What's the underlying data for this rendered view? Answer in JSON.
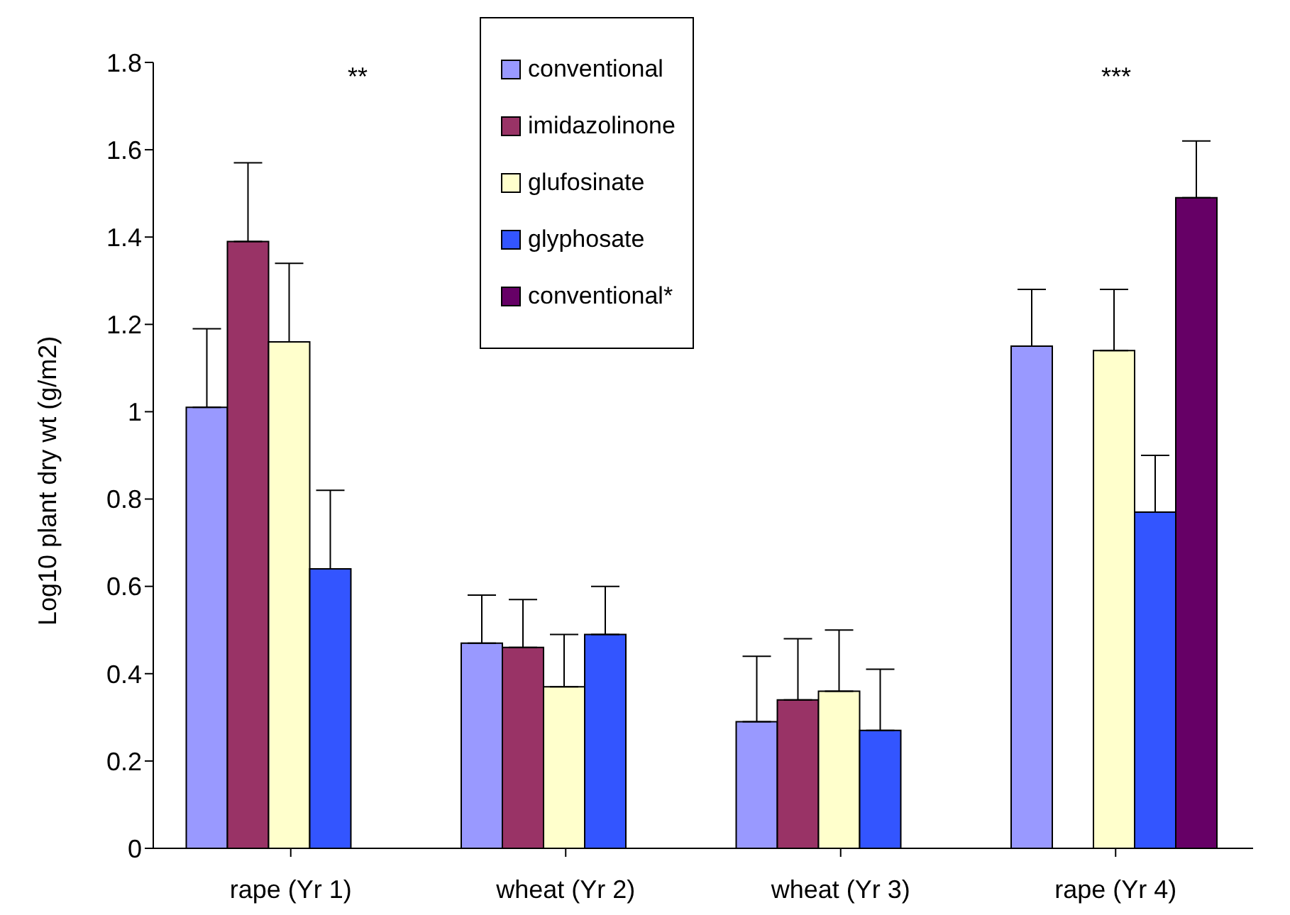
{
  "chart_data": {
    "type": "bar",
    "ylabel": "Log10 plant dry wt  (g/m2)",
    "categories": [
      "rape (Yr 1)",
      "wheat (Yr 2)",
      "wheat (Yr 3)",
      "rape (Yr 4)"
    ],
    "series": [
      {
        "name": "conventional",
        "color": "#9999ff",
        "values": [
          1.01,
          0.47,
          0.29,
          1.15
        ],
        "errors": [
          [
            1.01,
            1.19
          ],
          [
            0.47,
            0.58
          ],
          [
            0.29,
            0.44
          ],
          [
            1.15,
            1.28
          ]
        ]
      },
      {
        "name": "imidazolinone",
        "color": "#993366",
        "values": [
          1.39,
          0.46,
          0.34,
          null
        ],
        "errors": [
          [
            1.39,
            1.57
          ],
          [
            0.46,
            0.57
          ],
          [
            0.34,
            0.48
          ],
          null
        ]
      },
      {
        "name": "glufosinate",
        "color": "#ffffcc",
        "values": [
          1.16,
          0.37,
          0.36,
          1.14
        ],
        "errors": [
          [
            1.16,
            1.34
          ],
          [
            0.37,
            0.49
          ],
          [
            0.36,
            0.5
          ],
          [
            1.14,
            1.28
          ]
        ]
      },
      {
        "name": "glyphosate",
        "color": "#3355ff",
        "values": [
          0.64,
          0.49,
          0.27,
          0.77
        ],
        "errors": [
          [
            0.64,
            0.82
          ],
          [
            0.49,
            0.6
          ],
          [
            0.27,
            0.41
          ],
          [
            0.77,
            0.9
          ]
        ]
      },
      {
        "name": "conventional*",
        "color": "#660066",
        "values": [
          null,
          null,
          null,
          1.49
        ],
        "errors": [
          null,
          null,
          null,
          [
            1.49,
            1.62
          ]
        ]
      }
    ],
    "ylim": [
      0,
      1.8
    ],
    "yticks": [
      0,
      0.2,
      0.4,
      0.6,
      0.8,
      1,
      1.2,
      1.4,
      1.6,
      1.8
    ],
    "grid": false,
    "legend": "top",
    "annotations": [
      "**",
      "***"
    ]
  }
}
